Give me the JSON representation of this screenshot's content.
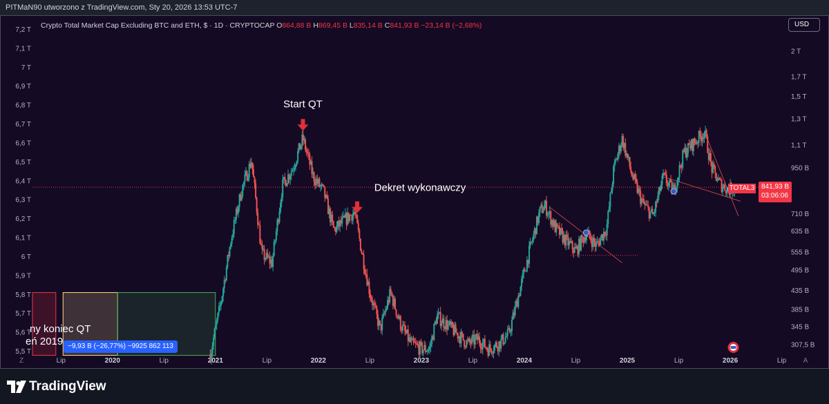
{
  "header": {
    "caption": "PITMaN90 utworzono z TradingView.com, Sty 20, 2026 13:53 UTC-7"
  },
  "legend": {
    "title": "Crypto Total Market Cap Excluding BTC and ETH, $ · 1D · CRYPTOCAP",
    "o_label": "O",
    "o_value": "864,88 B",
    "h_label": "H",
    "h_value": "869,45 B",
    "l_label": "L",
    "l_value": "835,14 B",
    "c_label": "C",
    "c_value": "841,93 B",
    "change": "−23,14 B (−2,68%)"
  },
  "toolbar": {
    "currency": "USD"
  },
  "price_tag": {
    "symbol": "TOTAL3",
    "price": "841,93 B",
    "countdown": "03:06:06"
  },
  "measure": {
    "text": "−9,93 B (−26,77%) −9925 862 113"
  },
  "footer": {
    "brand": "TradingView"
  },
  "colors": {
    "up": "#26a69a",
    "down": "#ef5350",
    "background": "#140a24",
    "annotation_arrow": "#e0303a"
  },
  "chart_data": {
    "type": "candlestick",
    "series_name": "TOTAL3",
    "scale": "log",
    "x_labels": [
      "Lip",
      "2020",
      "Lip",
      "2021",
      "Lip",
      "2022",
      "Lip",
      "2023",
      "Lip",
      "2024",
      "Lip",
      "2025",
      "Lip",
      "2026",
      "Lip"
    ],
    "x_start_year": 2019.25,
    "x_end_year": 2026.55,
    "right_axis_labels": [
      "2 T",
      "1,7 T",
      "1,5 T",
      "1,3 T",
      "1,1 T",
      "950 B",
      "710 B",
      "635 B",
      "555 B",
      "495 B",
      "435 B",
      "385 B",
      "345 B",
      "307,5 B"
    ],
    "right_axis_values_b": [
      2000,
      1700,
      1500,
      1300,
      1100,
      950,
      710,
      635,
      555,
      495,
      435,
      385,
      345,
      307.5
    ],
    "left_axis_labels": [
      "7,2 T",
      "7,1 T",
      "7 T",
      "6,9 T",
      "6,8 T",
      "6,7 T",
      "6,6 T",
      "6,5 T",
      "6,4 T",
      "6,3 T",
      "6,2 T",
      "6,1 T",
      "6 T",
      "5,9 T",
      "5,8 T",
      "5,7 T",
      "5,6 T",
      "5,5 T"
    ],
    "y_range_b": [
      290,
      2300
    ],
    "last_close_b": 841.93,
    "price_path": [
      [
        2020.95,
        290
      ],
      [
        2021.05,
        400
      ],
      [
        2021.15,
        600
      ],
      [
        2021.25,
        820
      ],
      [
        2021.35,
        1000
      ],
      [
        2021.45,
        550
      ],
      [
        2021.55,
        520
      ],
      [
        2021.65,
        850
      ],
      [
        2021.75,
        950
      ],
      [
        2021.85,
        1150
      ],
      [
        2021.95,
        900
      ],
      [
        2022.05,
        820
      ],
      [
        2022.15,
        640
      ],
      [
        2022.25,
        680
      ],
      [
        2022.35,
        720
      ],
      [
        2022.42,
        560
      ],
      [
        2022.5,
        430
      ],
      [
        2022.6,
        340
      ],
      [
        2022.7,
        430
      ],
      [
        2022.8,
        350
      ],
      [
        2022.9,
        310
      ],
      [
        2023.0,
        300
      ],
      [
        2023.08,
        300
      ],
      [
        2023.15,
        370
      ],
      [
        2023.25,
        350
      ],
      [
        2023.35,
        330
      ],
      [
        2023.45,
        310
      ],
      [
        2023.55,
        320
      ],
      [
        2023.65,
        300
      ],
      [
        2023.75,
        310
      ],
      [
        2023.85,
        330
      ],
      [
        2023.95,
        430
      ],
      [
        2024.05,
        560
      ],
      [
        2024.15,
        720
      ],
      [
        2024.2,
        750
      ],
      [
        2024.3,
        650
      ],
      [
        2024.4,
        600
      ],
      [
        2024.5,
        560
      ],
      [
        2024.6,
        630
      ],
      [
        2024.7,
        580
      ],
      [
        2024.8,
        650
      ],
      [
        2024.87,
        950
      ],
      [
        2024.95,
        1150
      ],
      [
        2025.05,
        900
      ],
      [
        2025.15,
        760
      ],
      [
        2025.25,
        700
      ],
      [
        2025.35,
        900
      ],
      [
        2025.45,
        820
      ],
      [
        2025.55,
        1050
      ],
      [
        2025.65,
        1120
      ],
      [
        2025.75,
        1200
      ],
      [
        2025.82,
        950
      ],
      [
        2025.9,
        860
      ],
      [
        2025.98,
        830
      ],
      [
        2026.05,
        842
      ]
    ],
    "annotations": [
      {
        "text": "Start QT",
        "x": 2021.85,
        "y": 1150
      },
      {
        "text": "Dekret wykonawczy",
        "x": 2022.35,
        "y": 720
      },
      {
        "text": "ny koniec QT",
        "x": 2019.25,
        "y": 315
      },
      {
        "text": "eń 2019",
        "x": 2019.25,
        "y": 300
      }
    ]
  }
}
